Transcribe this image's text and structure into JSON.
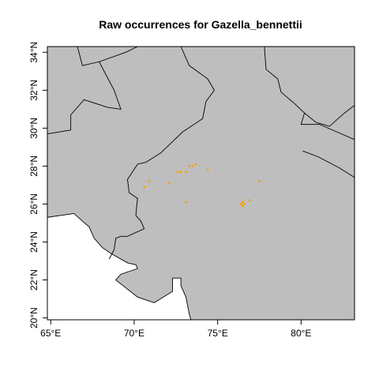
{
  "title": "Raw occurrences for Gazella_bennettii",
  "colors": {
    "land": "#bebebe",
    "water": "#ffffff",
    "border": "#000000",
    "occurrence": "#f5a000"
  },
  "extent": {
    "lon": [
      64.8,
      83.2
    ],
    "lat": [
      19.9,
      34.3
    ]
  },
  "x_ticks": [
    {
      "value": 65,
      "label": "65°E"
    },
    {
      "value": 70,
      "label": "70°E"
    },
    {
      "value": 75,
      "label": "75°E"
    },
    {
      "value": 80,
      "label": "80°E"
    }
  ],
  "y_ticks": [
    {
      "value": 20,
      "label": "20°N"
    },
    {
      "value": 22,
      "label": "22°N"
    },
    {
      "value": 24,
      "label": "24°N"
    },
    {
      "value": 26,
      "label": "26°N"
    },
    {
      "value": 28,
      "label": "28°N"
    },
    {
      "value": 30,
      "label": "30°N"
    },
    {
      "value": 32,
      "label": "32°N"
    },
    {
      "value": 34,
      "label": "34°N"
    }
  ],
  "occurrences": [
    [
      70.6,
      26.9
    ],
    [
      70.9,
      27.2
    ],
    [
      72.1,
      27.1
    ],
    [
      72.6,
      27.7
    ],
    [
      72.8,
      27.7
    ],
    [
      73.1,
      27.7
    ],
    [
      73.3,
      28.0
    ],
    [
      73.5,
      28.0
    ],
    [
      73.7,
      28.1
    ],
    [
      74.4,
      27.8
    ],
    [
      73.1,
      26.1
    ],
    [
      76.4,
      26.0
    ],
    [
      76.5,
      25.9
    ],
    [
      76.5,
      26.1
    ],
    [
      76.6,
      26.0
    ],
    [
      76.9,
      26.2
    ],
    [
      77.5,
      27.2
    ]
  ],
  "coastline": [
    [
      64.8,
      25.3
    ],
    [
      65.6,
      25.4
    ],
    [
      66.4,
      25.5
    ],
    [
      66.9,
      25.1
    ],
    [
      67.3,
      24.8
    ],
    [
      67.6,
      24.2
    ],
    [
      68.1,
      23.7
    ],
    [
      68.6,
      23.4
    ],
    [
      69.6,
      22.9
    ],
    [
      70.1,
      22.8
    ],
    [
      70.2,
      22.6
    ],
    [
      69.2,
      22.3
    ],
    [
      68.9,
      22.0
    ],
    [
      70.2,
      21.1
    ],
    [
      71.2,
      20.8
    ],
    [
      72.3,
      21.4
    ],
    [
      72.3,
      22.1
    ],
    [
      72.8,
      22.1
    ],
    [
      72.8,
      21.7
    ],
    [
      73.1,
      21.1
    ],
    [
      73.3,
      20.2
    ],
    [
      73.4,
      19.9
    ]
  ],
  "borders": [
    [
      [
        66.6,
        34.3
      ],
      [
        66.9,
        33.3
      ],
      [
        67.9,
        33.5
      ],
      [
        68.8,
        32.0
      ],
      [
        69.2,
        31.0
      ],
      [
        68.4,
        31.1
      ],
      [
        67.0,
        31.5
      ],
      [
        66.2,
        30.7
      ],
      [
        66.2,
        29.9
      ],
      [
        64.8,
        29.7
      ]
    ],
    [
      [
        67.9,
        33.5
      ],
      [
        69.5,
        34.0
      ],
      [
        70.2,
        34.3
      ]
    ],
    [
      [
        72.8,
        34.3
      ],
      [
        73.3,
        33.3
      ],
      [
        74.4,
        32.6
      ],
      [
        74.8,
        32.0
      ],
      [
        74.3,
        31.4
      ],
      [
        74.1,
        30.5
      ],
      [
        72.9,
        29.8
      ],
      [
        71.6,
        28.7
      ],
      [
        70.7,
        28.2
      ],
      [
        70.2,
        28.1
      ],
      [
        69.6,
        27.3
      ],
      [
        69.7,
        26.6
      ],
      [
        70.2,
        26.3
      ],
      [
        70.1,
        25.4
      ],
      [
        70.4,
        25.1
      ],
      [
        70.6,
        24.7
      ],
      [
        69.6,
        24.3
      ],
      [
        69.2,
        24.3
      ],
      [
        68.9,
        24.2
      ],
      [
        68.8,
        23.6
      ],
      [
        68.5,
        23.1
      ]
    ],
    [
      [
        77.8,
        34.3
      ],
      [
        77.9,
        33.1
      ],
      [
        78.6,
        32.6
      ],
      [
        78.8,
        31.9
      ],
      [
        79.6,
        31.3
      ],
      [
        80.2,
        30.8
      ],
      [
        80.0,
        30.2
      ],
      [
        81.1,
        30.2
      ],
      [
        83.2,
        29.4
      ]
    ],
    [
      [
        83.2,
        31.2
      ],
      [
        82.6,
        30.8
      ],
      [
        81.7,
        30.1
      ],
      [
        80.9,
        30.3
      ],
      [
        80.2,
        30.8
      ]
    ],
    [
      [
        80.1,
        28.8
      ],
      [
        81.0,
        28.5
      ],
      [
        82.3,
        27.9
      ],
      [
        83.2,
        27.4
      ]
    ]
  ]
}
